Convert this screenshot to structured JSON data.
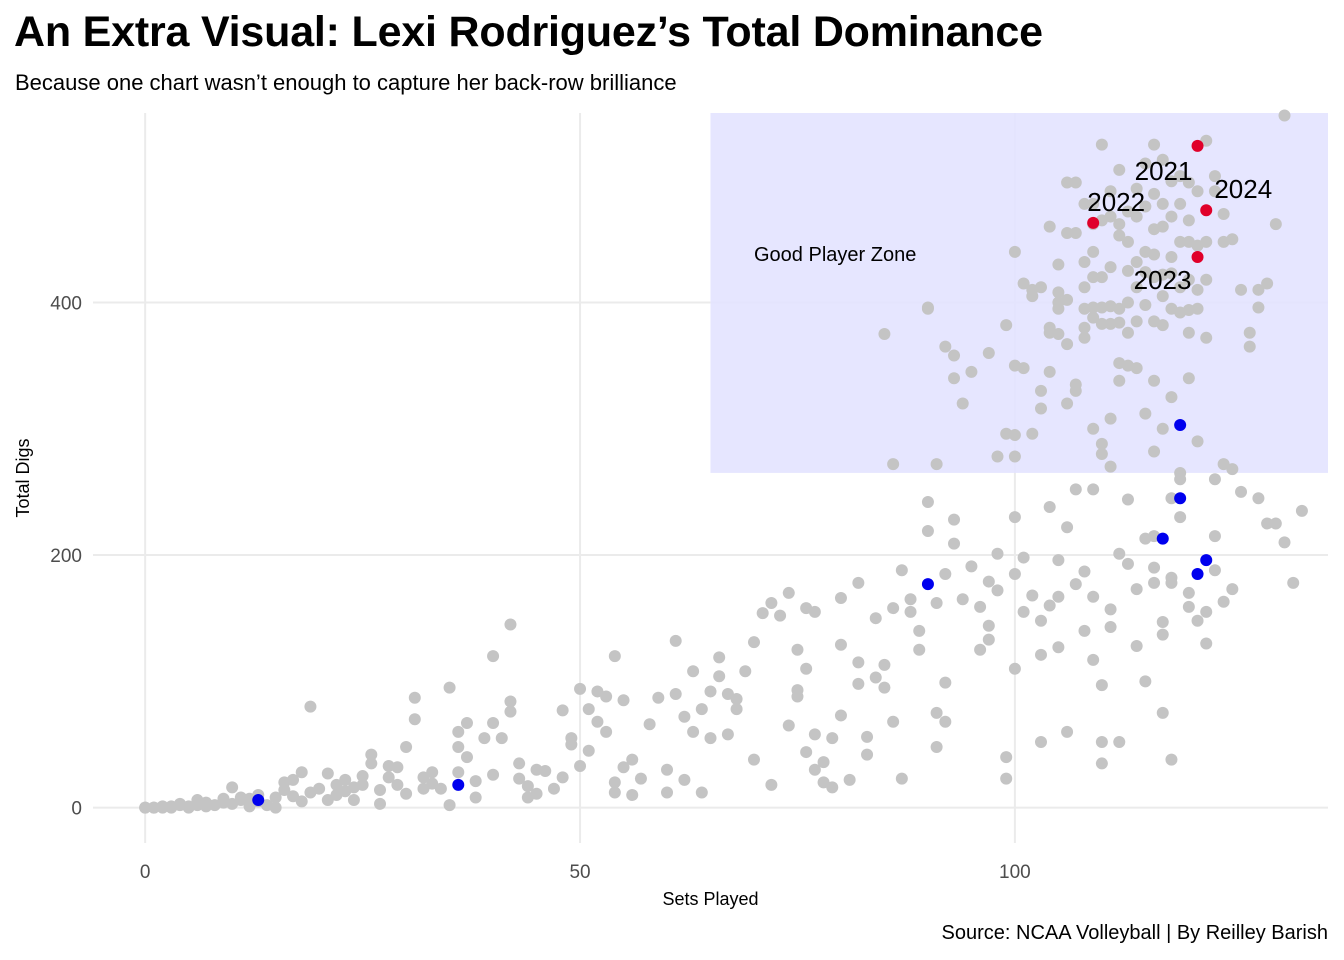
{
  "chart_data": {
    "type": "scatter",
    "title": "An Extra Visual: Lexi Rodriguez’s Total Dominance",
    "subtitle": "Because one chart wasn’t enough to capture her back-row brilliance",
    "caption": "Source: NCAA Volleyball | By Reilley Barish",
    "xlabel": "Sets Played",
    "ylabel": "Total Digs",
    "xlim": [
      -6,
      136
    ],
    "ylim": [
      -28,
      550
    ],
    "xticks": [
      0,
      50,
      100
    ],
    "yticks": [
      0,
      200,
      400
    ],
    "grid": true,
    "legend": "none",
    "colors": {
      "others": "#c4c4c4",
      "blue": "#0000ee",
      "rodriguez": "#e0002a",
      "zone_fill": "#e3e3ff",
      "grid": "#ebebeb"
    },
    "zone": {
      "label": "Good Player Zone",
      "x_min": 65,
      "y_min": 265
    },
    "highlight_points": [
      {
        "label": "2021",
        "x": 121,
        "y": 524
      },
      {
        "label": "2022",
        "x": 109,
        "y": 463
      },
      {
        "label": "2023",
        "x": 121,
        "y": 436
      },
      {
        "label": "2024",
        "x": 122,
        "y": 473
      }
    ],
    "blue_points": [
      [
        13,
        6
      ],
      [
        36,
        18
      ],
      [
        90,
        177
      ],
      [
        119,
        303
      ],
      [
        119,
        245
      ],
      [
        117,
        213
      ],
      [
        122,
        196
      ],
      [
        121,
        185
      ]
    ],
    "other_points": [
      [
        0,
        0
      ],
      [
        0,
        0
      ],
      [
        1,
        0
      ],
      [
        1,
        0
      ],
      [
        2,
        0
      ],
      [
        2,
        1
      ],
      [
        3,
        1
      ],
      [
        3,
        0
      ],
      [
        4,
        2
      ],
      [
        4,
        3
      ],
      [
        5,
        1
      ],
      [
        5,
        0
      ],
      [
        6,
        2
      ],
      [
        6,
        6
      ],
      [
        7,
        1
      ],
      [
        7,
        4
      ],
      [
        8,
        2
      ],
      [
        9,
        4
      ],
      [
        9,
        7
      ],
      [
        10,
        3
      ],
      [
        10,
        16
      ],
      [
        11,
        6
      ],
      [
        11,
        8
      ],
      [
        12,
        1
      ],
      [
        12,
        7
      ],
      [
        13,
        5
      ],
      [
        13,
        10
      ],
      [
        14,
        2
      ],
      [
        15,
        0
      ],
      [
        15,
        8
      ],
      [
        16,
        14
      ],
      [
        16,
        20
      ],
      [
        17,
        9
      ],
      [
        17,
        22
      ],
      [
        18,
        5
      ],
      [
        18,
        28
      ],
      [
        19,
        80
      ],
      [
        19,
        12
      ],
      [
        20,
        15
      ],
      [
        21,
        6
      ],
      [
        21,
        27
      ],
      [
        22,
        10
      ],
      [
        22,
        18
      ],
      [
        23,
        22
      ],
      [
        23,
        13
      ],
      [
        24,
        16
      ],
      [
        24,
        6
      ],
      [
        25,
        25
      ],
      [
        25,
        18
      ],
      [
        26,
        42
      ],
      [
        26,
        35
      ],
      [
        27,
        3
      ],
      [
        27,
        14
      ],
      [
        28,
        33
      ],
      [
        28,
        24
      ],
      [
        29,
        18
      ],
      [
        29,
        32
      ],
      [
        30,
        48
      ],
      [
        30,
        11
      ],
      [
        31,
        87
      ],
      [
        31,
        70
      ],
      [
        32,
        15
      ],
      [
        32,
        24
      ],
      [
        33,
        28
      ],
      [
        33,
        19
      ],
      [
        34,
        15
      ],
      [
        35,
        95
      ],
      [
        35,
        2
      ],
      [
        36,
        28
      ],
      [
        36,
        48
      ],
      [
        36,
        60
      ],
      [
        37,
        40
      ],
      [
        37,
        67
      ],
      [
        38,
        21
      ],
      [
        38,
        8
      ],
      [
        39,
        55
      ],
      [
        40,
        26
      ],
      [
        40,
        120
      ],
      [
        40,
        67
      ],
      [
        41,
        55
      ],
      [
        42,
        84
      ],
      [
        42,
        145
      ],
      [
        42,
        76
      ],
      [
        43,
        35
      ],
      [
        43,
        23
      ],
      [
        44,
        17
      ],
      [
        44,
        8
      ],
      [
        45,
        11
      ],
      [
        45,
        30
      ],
      [
        46,
        29
      ],
      [
        47,
        15
      ],
      [
        48,
        77
      ],
      [
        48,
        24
      ],
      [
        49,
        55
      ],
      [
        49,
        50
      ],
      [
        50,
        94
      ],
      [
        50,
        33
      ],
      [
        51,
        78
      ],
      [
        51,
        45
      ],
      [
        52,
        92
      ],
      [
        52,
        68
      ],
      [
        53,
        88
      ],
      [
        53,
        60
      ],
      [
        54,
        120
      ],
      [
        54,
        20
      ],
      [
        54,
        12
      ],
      [
        55,
        32
      ],
      [
        55,
        85
      ],
      [
        56,
        10
      ],
      [
        56,
        38
      ],
      [
        57,
        23
      ],
      [
        58,
        66
      ],
      [
        59,
        87
      ],
      [
        60,
        30
      ],
      [
        60,
        12
      ],
      [
        61,
        90
      ],
      [
        61,
        132
      ],
      [
        62,
        72
      ],
      [
        62,
        22
      ],
      [
        63,
        108
      ],
      [
        63,
        60
      ],
      [
        64,
        12
      ],
      [
        64,
        78
      ],
      [
        65,
        55
      ],
      [
        65,
        92
      ],
      [
        66,
        119
      ],
      [
        66,
        104
      ],
      [
        67,
        90
      ],
      [
        67,
        58
      ],
      [
        68,
        78
      ],
      [
        68,
        86
      ],
      [
        69,
        108
      ],
      [
        70,
        38
      ],
      [
        70,
        131
      ],
      [
        71,
        154
      ],
      [
        72,
        162
      ],
      [
        72,
        18
      ],
      [
        73,
        152
      ],
      [
        74,
        65
      ],
      [
        74,
        170
      ],
      [
        75,
        125
      ],
      [
        75,
        88
      ],
      [
        75,
        93
      ],
      [
        76,
        44
      ],
      [
        76,
        158
      ],
      [
        76,
        110
      ],
      [
        77,
        58
      ],
      [
        77,
        30
      ],
      [
        77,
        155
      ],
      [
        78,
        36
      ],
      [
        78,
        20
      ],
      [
        79,
        55
      ],
      [
        79,
        16
      ],
      [
        80,
        166
      ],
      [
        80,
        73
      ],
      [
        80,
        129
      ],
      [
        81,
        22
      ],
      [
        82,
        98
      ],
      [
        82,
        178
      ],
      [
        82,
        115
      ],
      [
        83,
        56
      ],
      [
        83,
        42
      ],
      [
        84,
        150
      ],
      [
        84,
        103
      ],
      [
        85,
        113
      ],
      [
        85,
        95
      ],
      [
        86,
        158
      ],
      [
        86,
        68
      ],
      [
        87,
        23
      ],
      [
        87,
        188
      ],
      [
        88,
        155
      ],
      [
        88,
        165
      ],
      [
        89,
        125
      ],
      [
        89,
        140
      ],
      [
        90,
        242
      ],
      [
        90,
        219
      ],
      [
        91,
        48
      ],
      [
        91,
        75
      ],
      [
        91,
        162
      ],
      [
        92,
        185
      ],
      [
        92,
        68
      ],
      [
        92,
        99
      ],
      [
        93,
        228
      ],
      [
        93,
        209
      ],
      [
        94,
        165
      ],
      [
        95,
        191
      ],
      [
        96,
        125
      ],
      [
        96,
        159
      ],
      [
        97,
        179
      ],
      [
        97,
        133
      ],
      [
        97,
        144
      ],
      [
        98,
        201
      ],
      [
        98,
        172
      ],
      [
        99,
        40
      ],
      [
        99,
        23
      ],
      [
        100,
        230
      ],
      [
        100,
        185
      ],
      [
        100,
        110
      ],
      [
        101,
        155
      ],
      [
        101,
        198
      ],
      [
        102,
        168
      ],
      [
        103,
        52
      ],
      [
        103,
        121
      ],
      [
        103,
        148
      ],
      [
        104,
        238
      ],
      [
        104,
        160
      ],
      [
        105,
        167
      ],
      [
        105,
        127
      ],
      [
        105,
        196
      ],
      [
        106,
        60
      ],
      [
        106,
        222
      ],
      [
        107,
        177
      ],
      [
        107,
        252
      ],
      [
        108,
        140
      ],
      [
        108,
        187
      ],
      [
        109,
        117
      ],
      [
        109,
        252
      ],
      [
        109,
        167
      ],
      [
        110,
        35
      ],
      [
        110,
        52
      ],
      [
        110,
        97
      ],
      [
        111,
        157
      ],
      [
        111,
        143
      ],
      [
        112,
        52
      ],
      [
        112,
        201
      ],
      [
        113,
        244
      ],
      [
        113,
        193
      ],
      [
        114,
        173
      ],
      [
        114,
        128
      ],
      [
        115,
        100
      ],
      [
        115,
        213
      ],
      [
        116,
        178
      ],
      [
        116,
        190
      ],
      [
        116,
        215
      ],
      [
        117,
        137
      ],
      [
        117,
        147
      ],
      [
        117,
        75
      ],
      [
        118,
        38
      ],
      [
        118,
        178
      ],
      [
        118,
        182
      ],
      [
        119,
        230
      ],
      [
        119,
        260
      ],
      [
        120,
        159
      ],
      [
        120,
        170
      ],
      [
        121,
        148
      ],
      [
        122,
        155
      ],
      [
        122,
        130
      ],
      [
        123,
        188
      ],
      [
        123,
        215
      ],
      [
        124,
        163
      ],
      [
        125,
        173
      ],
      [
        126,
        250
      ],
      [
        128,
        245
      ],
      [
        129,
        225
      ],
      [
        130,
        225
      ],
      [
        131,
        210
      ],
      [
        132,
        178
      ],
      [
        133,
        235
      ],
      [
        86,
        272
      ],
      [
        90,
        395
      ],
      [
        91,
        272
      ],
      [
        92,
        365
      ],
      [
        93,
        358
      ],
      [
        93,
        340
      ],
      [
        94,
        320
      ],
      [
        98,
        278
      ],
      [
        99,
        296
      ],
      [
        100,
        295
      ],
      [
        100,
        278
      ],
      [
        101,
        348
      ],
      [
        102,
        296
      ],
      [
        103,
        316
      ],
      [
        104,
        345
      ],
      [
        105,
        400
      ],
      [
        105,
        375
      ],
      [
        106,
        320
      ],
      [
        107,
        335
      ],
      [
        108,
        372
      ],
      [
        109,
        300
      ],
      [
        110,
        288
      ],
      [
        110,
        280
      ],
      [
        111,
        308
      ],
      [
        111,
        270
      ],
      [
        112,
        352
      ],
      [
        112,
        338
      ],
      [
        113,
        350
      ],
      [
        114,
        348
      ],
      [
        115,
        312
      ],
      [
        116,
        282
      ],
      [
        116,
        338
      ],
      [
        117,
        300
      ],
      [
        118,
        245
      ],
      [
        118,
        325
      ],
      [
        119,
        265
      ],
      [
        120,
        340
      ],
      [
        121,
        290
      ],
      [
        122,
        372
      ],
      [
        123,
        260
      ],
      [
        124,
        272
      ],
      [
        125,
        268
      ],
      [
        127,
        365
      ],
      [
        128,
        410
      ],
      [
        129,
        415
      ],
      [
        130,
        462
      ],
      [
        131,
        548
      ],
      [
        85,
        375
      ],
      [
        90,
        396
      ],
      [
        95,
        345
      ],
      [
        97,
        360
      ],
      [
        99,
        382
      ],
      [
        100,
        350
      ],
      [
        100,
        440
      ],
      [
        101,
        415
      ],
      [
        102,
        405
      ],
      [
        102,
        410
      ],
      [
        103,
        330
      ],
      [
        103,
        412
      ],
      [
        104,
        376
      ],
      [
        104,
        380
      ],
      [
        104,
        460
      ],
      [
        105,
        395
      ],
      [
        105,
        408
      ],
      [
        105,
        430
      ],
      [
        106,
        367
      ],
      [
        106,
        402
      ],
      [
        106,
        455
      ],
      [
        106,
        495
      ],
      [
        107,
        330
      ],
      [
        107,
        455
      ],
      [
        107,
        495
      ],
      [
        108,
        380
      ],
      [
        108,
        395
      ],
      [
        108,
        412
      ],
      [
        108,
        432
      ],
      [
        108,
        478
      ],
      [
        109,
        388
      ],
      [
        109,
        396
      ],
      [
        109,
        420
      ],
      [
        109,
        440
      ],
      [
        109,
        462
      ],
      [
        109,
        478
      ],
      [
        110,
        383
      ],
      [
        110,
        396
      ],
      [
        110,
        420
      ],
      [
        110,
        465
      ],
      [
        110,
        525
      ],
      [
        111,
        383
      ],
      [
        111,
        397
      ],
      [
        111,
        428
      ],
      [
        111,
        468
      ],
      [
        111,
        488
      ],
      [
        112,
        384
      ],
      [
        112,
        395
      ],
      [
        112,
        453
      ],
      [
        112,
        462
      ],
      [
        112,
        505
      ],
      [
        113,
        376
      ],
      [
        113,
        400
      ],
      [
        113,
        425
      ],
      [
        113,
        448
      ],
      [
        113,
        472
      ],
      [
        114,
        385
      ],
      [
        114,
        412
      ],
      [
        114,
        432
      ],
      [
        114,
        468
      ],
      [
        114,
        490
      ],
      [
        115,
        398
      ],
      [
        115,
        424
      ],
      [
        115,
        440
      ],
      [
        115,
        476
      ],
      [
        115,
        510
      ],
      [
        116,
        385
      ],
      [
        116,
        420
      ],
      [
        116,
        438
      ],
      [
        116,
        458
      ],
      [
        116,
        486
      ],
      [
        116,
        525
      ],
      [
        117,
        382
      ],
      [
        117,
        405
      ],
      [
        117,
        422
      ],
      [
        117,
        460
      ],
      [
        117,
        478
      ],
      [
        117,
        513
      ],
      [
        118,
        395
      ],
      [
        118,
        423
      ],
      [
        118,
        436
      ],
      [
        118,
        468
      ],
      [
        118,
        496
      ],
      [
        119,
        392
      ],
      [
        119,
        412
      ],
      [
        119,
        448
      ],
      [
        119,
        478
      ],
      [
        119,
        500
      ],
      [
        120,
        376
      ],
      [
        120,
        394
      ],
      [
        120,
        418
      ],
      [
        120,
        448
      ],
      [
        120,
        465
      ],
      [
        120,
        495
      ],
      [
        121,
        395
      ],
      [
        121,
        410
      ],
      [
        121,
        445
      ],
      [
        121,
        488
      ],
      [
        122,
        418
      ],
      [
        122,
        448
      ],
      [
        122,
        528
      ],
      [
        123,
        488
      ],
      [
        123,
        500
      ],
      [
        124,
        448
      ],
      [
        124,
        470
      ],
      [
        125,
        450
      ],
      [
        126,
        410
      ],
      [
        127,
        376
      ],
      [
        128,
        396
      ]
    ]
  }
}
